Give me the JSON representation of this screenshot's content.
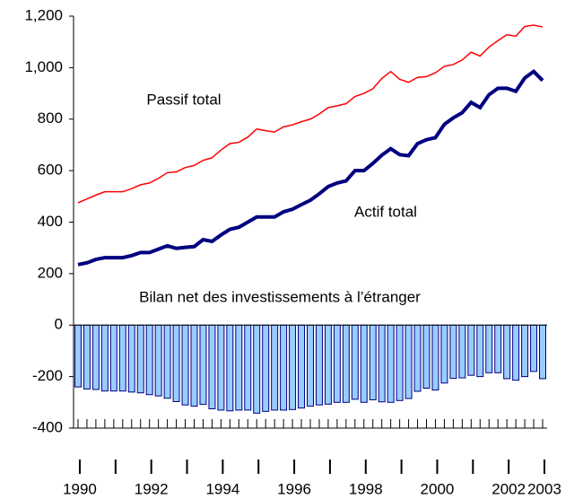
{
  "chart_data": {
    "type": "combo",
    "annotations": [
      "Passif total",
      "Actif total",
      "Bilan net des investissements à l’étranger"
    ],
    "categories": [
      "1990",
      null,
      null,
      null,
      null,
      null,
      null,
      null,
      "1992",
      null,
      null,
      null,
      null,
      null,
      null,
      null,
      "1994",
      null,
      null,
      null,
      null,
      null,
      null,
      null,
      "1996",
      null,
      null,
      null,
      null,
      null,
      null,
      null,
      "1998",
      null,
      null,
      null,
      null,
      null,
      null,
      null,
      "2000",
      null,
      null,
      null,
      null,
      null,
      null,
      null,
      "2002",
      null,
      null,
      null,
      "2003"
    ],
    "series": [
      {
        "name": "Passif total",
        "kind": "line",
        "color": "#ff0000",
        "values": [
          475,
          490,
          505,
          518,
          518,
          518,
          530,
          545,
          552,
          570,
          592,
          595,
          612,
          620,
          640,
          650,
          680,
          705,
          710,
          730,
          762,
          755,
          750,
          770,
          778,
          790,
          800,
          820,
          845,
          852,
          860,
          888,
          900,
          918,
          958,
          985,
          955,
          943,
          962,
          965,
          980,
          1005,
          1012,
          1030,
          1060,
          1045,
          1080,
          1105,
          1128,
          1122,
          1160,
          1165,
          1158
        ]
      },
      {
        "name": "Actif total",
        "kind": "line",
        "color": "#000080",
        "values": [
          235,
          242,
          255,
          262,
          262,
          262,
          270,
          282,
          282,
          295,
          308,
          298,
          302,
          305,
          332,
          325,
          350,
          372,
          380,
          400,
          420,
          420,
          420,
          440,
          450,
          468,
          485,
          510,
          538,
          552,
          560,
          600,
          600,
          628,
          660,
          685,
          662,
          658,
          705,
          720,
          728,
          780,
          805,
          825,
          865,
          845,
          895,
          920,
          920,
          908,
          960,
          985,
          950
        ]
      },
      {
        "name": "Bilan net des investissements à l’étranger",
        "kind": "bar",
        "color": "#99ccff",
        "values": [
          -240,
          -248,
          -250,
          -256,
          -256,
          -256,
          -260,
          -263,
          -270,
          -275,
          -284,
          -297,
          -310,
          -315,
          -308,
          -325,
          -330,
          -333,
          -330,
          -330,
          -342,
          -335,
          -330,
          -330,
          -328,
          -322,
          -315,
          -310,
          -307,
          -300,
          -300,
          -288,
          -300,
          -290,
          -298,
          -300,
          -293,
          -285,
          -257,
          -245,
          -252,
          -225,
          -207,
          -205,
          -195,
          -200,
          -185,
          -185,
          -208,
          -214,
          -200,
          -180,
          -208
        ]
      }
    ],
    "ylim": [
      -400,
      1200
    ],
    "yticks": [
      -400,
      -200,
      0,
      200,
      400,
      600,
      800,
      {
        "value": 1000,
        "label": "1,000"
      },
      {
        "value": 1200,
        "label": "1,200"
      }
    ],
    "grid": false
  }
}
